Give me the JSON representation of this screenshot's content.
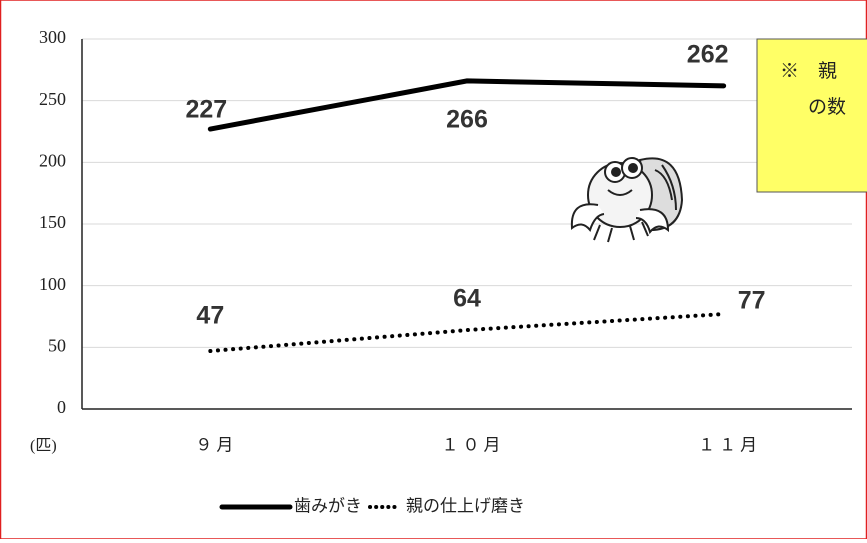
{
  "chart_data": {
    "type": "line",
    "y_label": "(匹)",
    "categories": [
      "９月",
      "１０月",
      "１１月"
    ],
    "series": [
      {
        "name": "歯みがき",
        "color": "#000000",
        "style": "solid",
        "values": [
          227,
          266,
          262
        ]
      },
      {
        "name": "親の仕上げ磨き",
        "color": "#000000",
        "style": "dotted",
        "values": [
          47,
          64,
          77
        ]
      }
    ],
    "ylim": [
      0,
      300
    ],
    "yticks": [
      0,
      50,
      100,
      150,
      200,
      250,
      300
    ],
    "grid": true,
    "legend": "bottom",
    "annotation": [
      "※　親",
      "の数"
    ]
  }
}
